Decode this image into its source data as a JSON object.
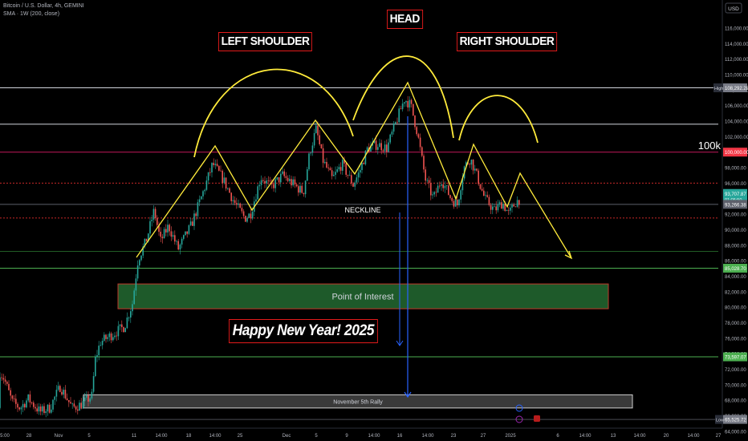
{
  "header": {
    "symbol_line": "Bitcoin / U.S. Dollar, 4h, GEMINI",
    "indicator_line": "SMA · 1W (200, close)"
  },
  "price_axis": {
    "currency": "USD",
    "ticks": [
      "116,000.00",
      "114,000.00",
      "112,000.00",
      "110,000.00",
      "108,000.00",
      "106,000.00",
      "104,000.00",
      "102,000.00",
      "100,000.00",
      "98,000.00",
      "96,000.00",
      "94,000.00",
      "92,000.00",
      "90,000.00",
      "88,000.00",
      "86,000.00",
      "84,000.00",
      "82,000.00",
      "80,000.00",
      "78,000.00",
      "76,000.00",
      "74,000.00",
      "72,000.00",
      "70,000.00",
      "68,000.00",
      "66,000.00",
      "64,000.00"
    ],
    "high_tag": {
      "label": "High",
      "value": "108,292.28",
      "color": "#787b86"
    },
    "tag_100k": {
      "value": "100,000.00",
      "color": "#f23645"
    },
    "tag_current": {
      "value": "93,707.87",
      "sub": "01:05:50",
      "color": "#26a69a"
    },
    "tag_sma": {
      "value": "93,266.38",
      "color": "#5d606b"
    },
    "tag_support": {
      "value": "85,028.70",
      "color": "#4caf50"
    },
    "tag_lower": {
      "value": "73,597.07",
      "color": "#4caf50"
    },
    "low_tag": {
      "label": "Low",
      "value": "65,525.72",
      "color": "#787b86"
    }
  },
  "time_axis": {
    "labels": [
      "5:00",
      "28",
      "Nov",
      "5",
      "11",
      "14:00",
      "18",
      "14:00",
      "25",
      "Dec",
      "5",
      "9",
      "14:00",
      "16",
      "14:00",
      "23",
      "27",
      "2025",
      "6",
      "14:00",
      "13",
      "14:00",
      "20",
      "14:00",
      "27"
    ]
  },
  "annotations": {
    "left_shoulder": "LEFT SHOULDER",
    "head": "HEAD",
    "right_shoulder": "RIGHT SHOULDER",
    "neckline": "NECKLINE",
    "label_100k": "100k",
    "poi": "Point of Interest",
    "happy": "Happy New Year! 2025",
    "rally": "November 5th Rally",
    "box_color_poi": "#1e5a2a",
    "line_yellow": "#ffeb3b"
  },
  "chart_data": {
    "type": "candlestick",
    "title": "Bitcoin / U.S. Dollar, 4h, GEMINI",
    "ylim": [
      63000,
      117000
    ],
    "levels": {
      "high": 108292.28,
      "white_upper": 103600,
      "round_100k": 100000,
      "red_dotted_upper": 96000,
      "sma": 93266.38,
      "neckline": 91500,
      "green_faint": 87200,
      "support": 85028.7,
      "poi_zone": [
        79800,
        83000
      ],
      "lower_green": 73597.07,
      "rally_zone": [
        67000,
        68700
      ],
      "low": 65525.72
    },
    "price_path": [
      [
        -40,
        67000
      ],
      [
        -30,
        69000
      ],
      [
        -15,
        74800
      ],
      [
        -5,
        72500
      ],
      [
        5,
        70800
      ],
      [
        15,
        67800
      ],
      [
        25,
        67000
      ],
      [
        35,
        68200
      ],
      [
        50,
        66500
      ],
      [
        62,
        67000
      ],
      [
        75,
        69800
      ],
      [
        90,
        67000
      ],
      [
        102,
        67500
      ],
      [
        115,
        68600
      ],
      [
        118,
        73000
      ],
      [
        125,
        75500
      ],
      [
        140,
        76500
      ],
      [
        155,
        77500
      ],
      [
        165,
        80500
      ],
      [
        172,
        86200
      ],
      [
        182,
        88500
      ],
      [
        192,
        92500
      ],
      [
        200,
        88500
      ],
      [
        210,
        90500
      ],
      [
        222,
        87500
      ],
      [
        238,
        90500
      ],
      [
        252,
        94500
      ],
      [
        265,
        98500
      ],
      [
        278,
        96500
      ],
      [
        292,
        93500
      ],
      [
        305,
        91500
      ],
      [
        312,
        92000
      ],
      [
        325,
        96800
      ],
      [
        338,
        95500
      ],
      [
        352,
        97000
      ],
      [
        366,
        95800
      ],
      [
        378,
        94800
      ],
      [
        386,
        100000
      ],
      [
        394,
        103000
      ],
      [
        402,
        99000
      ],
      [
        414,
        96500
      ],
      [
        426,
        98500
      ],
      [
        440,
        95800
      ],
      [
        448,
        97500
      ],
      [
        458,
        100500
      ],
      [
        470,
        101000
      ],
      [
        482,
        100500
      ],
      [
        494,
        104000
      ],
      [
        504,
        106900
      ],
      [
        512,
        106000
      ],
      [
        520,
        102500
      ],
      [
        530,
        96500
      ],
      [
        540,
        94000
      ],
      [
        550,
        96500
      ],
      [
        562,
        94000
      ],
      [
        570,
        93200
      ],
      [
        578,
        98000
      ],
      [
        586,
        99200
      ],
      [
        594,
        97000
      ],
      [
        604,
        94000
      ],
      [
        616,
        92500
      ],
      [
        626,
        93500
      ],
      [
        634,
        92000
      ],
      [
        642,
        93500
      ],
      [
        648,
        94000
      ]
    ]
  }
}
